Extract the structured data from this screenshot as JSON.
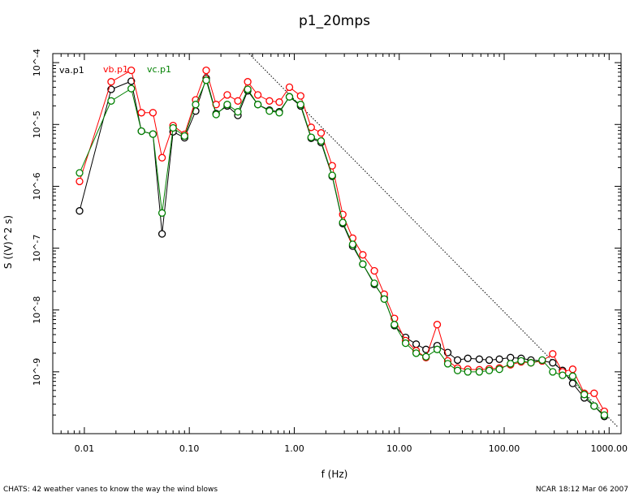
{
  "chart_data": {
    "type": "line",
    "title": "p1_20mps",
    "xlabel": "f (Hz)",
    "ylabel": "S ((V)^2 s)",
    "xscale": "log",
    "yscale": "log",
    "xlim": [
      0.005,
      1300
    ],
    "ylim": [
      1e-10,
      0.00014
    ],
    "xticks": [
      {
        "value": 0.01,
        "label": "0.01"
      },
      {
        "value": 0.1,
        "label": "0.10"
      },
      {
        "value": 1,
        "label": "1.00"
      },
      {
        "value": 10,
        "label": "10.00"
      },
      {
        "value": 100,
        "label": "100.00"
      },
      {
        "value": 1000,
        "label": "1000.00"
      }
    ],
    "yticks": [
      {
        "value": 1e-09,
        "label": "10^-9"
      },
      {
        "value": 1e-08,
        "label": "10^-8"
      },
      {
        "value": 1e-07,
        "label": "10^-7"
      },
      {
        "value": 1e-06,
        "label": "10^-6"
      },
      {
        "value": 1e-05,
        "label": "10^-5"
      },
      {
        "value": 0.0001,
        "label": "10^-4"
      }
    ],
    "reference_line": {
      "style": "dotted",
      "from": [
        0.37,
        0.00014
      ],
      "to": [
        1200,
        1.3e-10
      ]
    },
    "series": [
      {
        "name": "va.p1",
        "color": "#000000",
        "x": [
          0.009,
          0.018,
          0.028,
          0.035,
          0.045,
          0.055,
          0.07,
          0.09,
          0.115,
          0.145,
          0.18,
          0.23,
          0.29,
          0.36,
          0.45,
          0.58,
          0.72,
          0.9,
          1.15,
          1.45,
          1.8,
          2.3,
          2.9,
          3.6,
          4.5,
          5.8,
          7.2,
          9.0,
          11.5,
          14.5,
          18,
          23,
          29,
          36,
          45,
          58,
          72,
          90,
          115,
          145,
          180,
          230,
          290,
          360,
          450,
          580,
          720,
          900
        ],
        "y": [
          4e-07,
          3.7e-05,
          5e-05,
          7.8e-06,
          7e-06,
          1.7e-07,
          7.6e-06,
          6.1e-06,
          1.65e-05,
          5.6e-05,
          1.5e-05,
          2e-05,
          1.4e-05,
          3.5e-05,
          2.1e-05,
          1.7e-05,
          1.6e-05,
          2.8e-05,
          2e-05,
          6e-06,
          5.1e-06,
          1.45e-06,
          2.5e-07,
          1.08e-07,
          5.5e-08,
          2.6e-08,
          1.55e-08,
          5.6e-09,
          3.6e-09,
          2.8e-09,
          2.3e-09,
          2.65e-09,
          2.05e-09,
          1.55e-09,
          1.65e-09,
          1.6e-09,
          1.55e-09,
          1.6e-09,
          1.7e-09,
          1.65e-09,
          1.55e-09,
          1.5e-09,
          1.4e-09,
          1.05e-09,
          6.5e-10,
          3.8e-10,
          2.8e-10,
          1.9e-10
        ]
      },
      {
        "name": "vb.p1",
        "color": "#ff0000",
        "x": [
          0.009,
          0.018,
          0.028,
          0.035,
          0.045,
          0.055,
          0.07,
          0.09,
          0.115,
          0.145,
          0.18,
          0.23,
          0.29,
          0.36,
          0.45,
          0.58,
          0.72,
          0.9,
          1.15,
          1.45,
          1.8,
          2.3,
          2.9,
          3.6,
          4.5,
          5.8,
          7.2,
          9.0,
          11.5,
          14.5,
          18,
          23,
          29,
          36,
          45,
          58,
          72,
          90,
          115,
          145,
          180,
          230,
          290,
          360,
          450,
          580,
          720,
          900
        ],
        "y": [
          1.2e-06,
          4.9e-05,
          7.5e-05,
          1.55e-05,
          1.55e-05,
          2.9e-06,
          9.6e-06,
          6.9e-06,
          2.5e-05,
          7.5e-05,
          2.1e-05,
          3e-05,
          2.4e-05,
          4.9e-05,
          3e-05,
          2.4e-05,
          2.3e-05,
          4e-05,
          2.9e-05,
          9e-06,
          7.3e-06,
          2.15e-06,
          3.5e-07,
          1.45e-07,
          7.8e-08,
          4.3e-08,
          1.8e-08,
          7.3e-09,
          3.2e-09,
          2.2e-09,
          1.7e-09,
          5.8e-09,
          1.5e-09,
          1.15e-09,
          1.1e-09,
          1.08e-09,
          1.12e-09,
          1.15e-09,
          1.3e-09,
          1.45e-09,
          1.4e-09,
          1.5e-09,
          1.95e-09,
          1e-09,
          1.1e-09,
          4.5e-10,
          4.5e-10,
          2.3e-10
        ]
      },
      {
        "name": "vc.p1",
        "color": "#008000",
        "x": [
          0.009,
          0.018,
          0.028,
          0.035,
          0.045,
          0.055,
          0.07,
          0.09,
          0.115,
          0.145,
          0.18,
          0.23,
          0.29,
          0.36,
          0.45,
          0.58,
          0.72,
          0.9,
          1.15,
          1.45,
          1.8,
          2.3,
          2.9,
          3.6,
          4.5,
          5.8,
          7.2,
          9.0,
          11.5,
          14.5,
          18,
          23,
          29,
          36,
          45,
          58,
          72,
          90,
          115,
          145,
          180,
          230,
          290,
          360,
          450,
          580,
          720,
          900
        ],
        "y": [
          1.65e-06,
          2.4e-05,
          3.8e-05,
          7.8e-06,
          7e-06,
          3.7e-07,
          8.8e-06,
          6.5e-06,
          2.1e-05,
          5.2e-05,
          1.45e-05,
          2.1e-05,
          1.6e-05,
          3.7e-05,
          2.1e-05,
          1.65e-05,
          1.55e-05,
          2.8e-05,
          2.1e-05,
          6.2e-06,
          5.4e-06,
          1.5e-06,
          2.6e-07,
          1.15e-07,
          5.5e-08,
          2.7e-08,
          1.5e-08,
          5.8e-09,
          2.9e-09,
          2e-09,
          1.75e-09,
          2.3e-09,
          1.35e-09,
          1.05e-09,
          1e-09,
          1e-09,
          1.05e-09,
          1.1e-09,
          1.35e-09,
          1.5e-09,
          1.4e-09,
          1.55e-09,
          1e-09,
          8.8e-10,
          8.5e-10,
          4.3e-10,
          2.8e-10,
          2e-10
        ]
      }
    ],
    "legend": [
      "va.p1",
      "vb.p1",
      "vc.p1"
    ],
    "footer_left": "CHATS: 42 weather vanes to know the way the wind blows",
    "footer_right": "NCAR 18:12 Mar 06 2007"
  }
}
